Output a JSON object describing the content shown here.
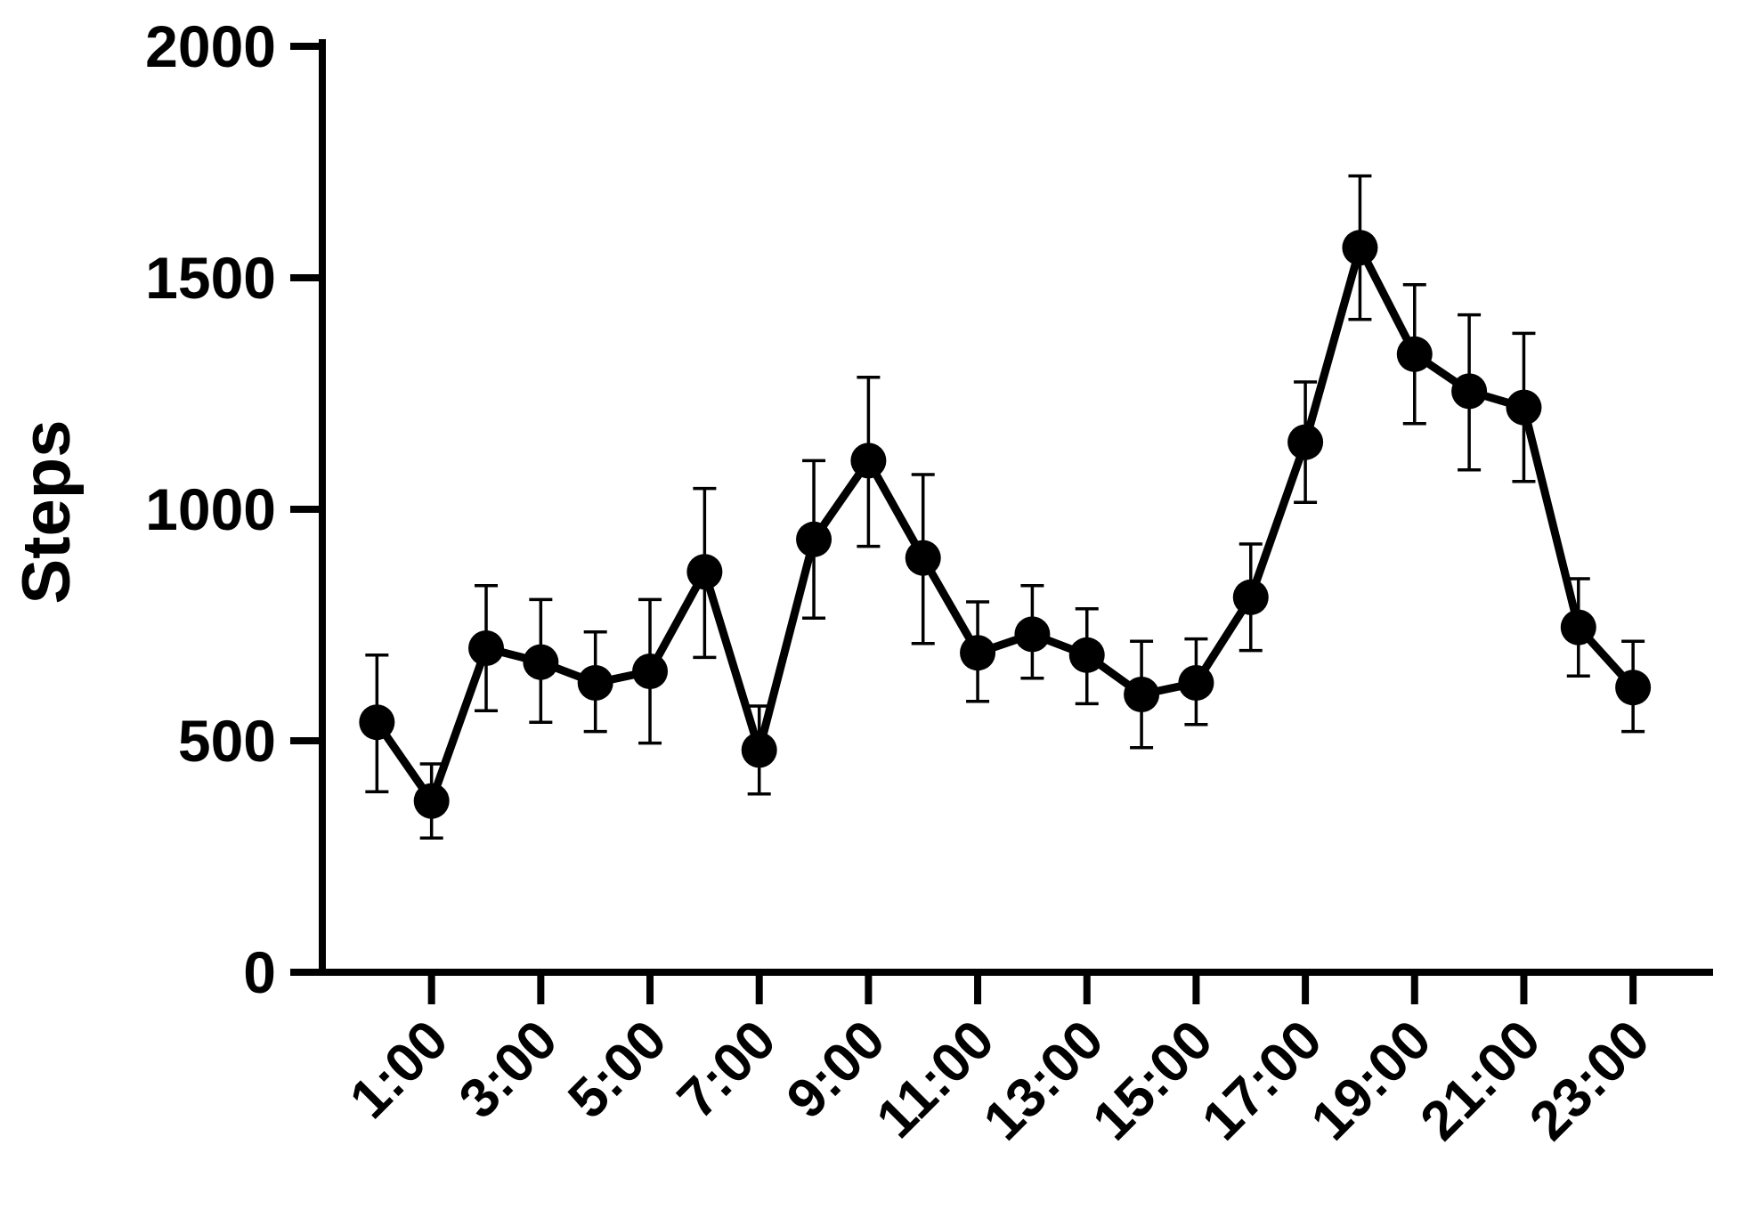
{
  "chart_data": {
    "type": "line",
    "ylabel": "Steps",
    "xlabel": "",
    "ylim": [
      0,
      2000
    ],
    "yticks": [
      0,
      500,
      1000,
      1500,
      2000
    ],
    "ytick_labels": [
      "0",
      "500",
      "1000",
      "1500",
      "2000"
    ],
    "x": [
      0.5,
      1,
      1.5,
      2,
      2.5,
      3,
      3.5,
      4,
      4.5,
      5,
      5.5,
      6,
      6.5,
      7,
      7.5,
      8,
      8.5,
      9,
      9.5,
      10,
      10.5,
      11,
      11.5,
      12
    ],
    "xlim": [
      0,
      12.7
    ],
    "xticks": [
      1,
      2,
      3,
      4,
      5,
      6,
      7,
      8,
      9,
      10,
      11,
      12
    ],
    "xtick_labels": [
      "1:00",
      "3:00",
      "5:00",
      "7:00",
      "9:00",
      "11:00",
      "13:00",
      "15:00",
      "17:00",
      "19:00",
      "21:00",
      "23:00"
    ],
    "grid": false,
    "series": [
      {
        "values": [
          540,
          370,
          700,
          670,
          625,
          650,
          865,
          480,
          935,
          1105,
          895,
          690,
          730,
          685,
          600,
          625,
          810,
          1145,
          1565,
          1335,
          1255,
          1220,
          745,
          615
        ],
        "error_upper": [
          685,
          450,
          835,
          805,
          735,
          805,
          1045,
          575,
          1105,
          1285,
          1075,
          800,
          835,
          785,
          715,
          720,
          925,
          1275,
          1720,
          1485,
          1420,
          1380,
          850,
          715
        ],
        "error_lower": [
          390,
          290,
          565,
          540,
          520,
          495,
          680,
          385,
          765,
          920,
          710,
          585,
          635,
          580,
          485,
          535,
          695,
          1015,
          1410,
          1185,
          1085,
          1060,
          640,
          520
        ]
      }
    ]
  }
}
